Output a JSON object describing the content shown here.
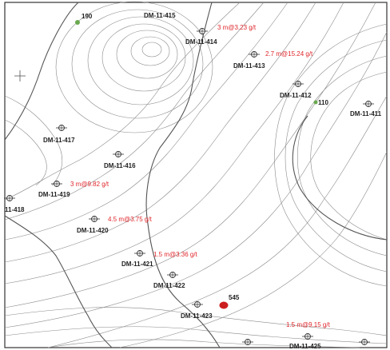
{
  "map": {
    "drillholes": [
      {
        "id": "DM-11-411"
      },
      {
        "id": "DM-11-412"
      },
      {
        "id": "DM-11-413"
      },
      {
        "id": "DM-11-414"
      },
      {
        "id": "DM-11-415"
      },
      {
        "id": "DM-11-416"
      },
      {
        "id": "DM-11-417"
      },
      {
        "id": "11-418"
      },
      {
        "id": "DM-11-419"
      },
      {
        "id": "DM-11-420"
      },
      {
        "id": "DM-11-421"
      },
      {
        "id": "DM-11-422"
      },
      {
        "id": "DM-11-423"
      },
      {
        "id": "DM-11-425"
      }
    ],
    "intercepts": [
      {
        "text": "3 m@3.23 g/t"
      },
      {
        "text": "2.7 m@15.24 g/t"
      },
      {
        "text": "3 m@9.82 g/t"
      },
      {
        "text": "4.5 m@3.75 g/t"
      },
      {
        "text": "1.5 m@3.36 g/t"
      },
      {
        "text": "1.5 m@9.15 g/t"
      }
    ],
    "samples": [
      {
        "value": "190",
        "color": "#6aa84f"
      },
      {
        "value": "110",
        "color": "#6aa84f"
      },
      {
        "value": "545",
        "color": "#cc1f1f"
      }
    ],
    "colors": {
      "contour": "#8a8a8a",
      "major_contour": "#555555",
      "grade_text": "#e0262b"
    }
  }
}
